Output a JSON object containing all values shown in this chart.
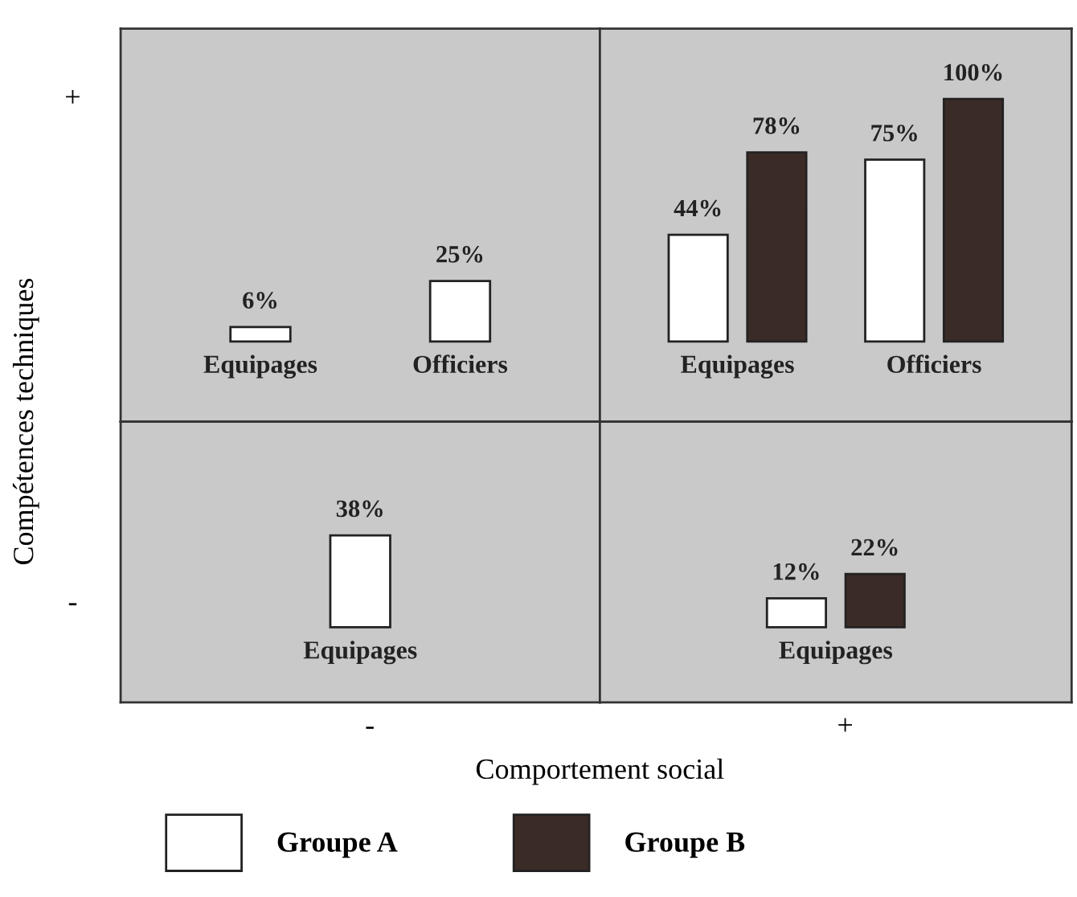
{
  "chart_data": [
    {
      "type": "bar",
      "ylabel": "Compétences techniques",
      "categories": [
        "Equipages",
        "Officiers"
      ],
      "ylim": [
        -33,
        129
      ],
      "annotations": [
        "+"
      ],
      "series": [
        {
          "color": "#ffffff",
          "values": [
            6,
            25
          ],
          "value_labels": [
            "6%",
            "25%"
          ]
        }
      ]
    },
    {
      "type": "bar",
      "categories": [
        "Equipages",
        "Officiers"
      ],
      "ylim": [
        -33,
        129
      ],
      "legend": "bottom",
      "series": [
        {
          "name": "Groupe A",
          "color": "#ffffff",
          "values": [
            44,
            75
          ],
          "value_labels": [
            "44%",
            "75%"
          ]
        },
        {
          "name": "Groupe B",
          "color": "#3b2b26",
          "values": [
            78,
            100
          ],
          "value_labels": [
            "78%",
            "100%"
          ]
        }
      ]
    },
    {
      "type": "bar",
      "xlabel": "Comportement social",
      "categories": [
        "Equipages"
      ],
      "ylim": [
        -31,
        85
      ],
      "annotations": [
        "-",
        "-"
      ],
      "series": [
        {
          "color": "#ffffff",
          "values": [
            38
          ],
          "value_labels": [
            "38%"
          ]
        }
      ]
    },
    {
      "type": "bar",
      "categories": [
        "Equipages"
      ],
      "ylim": [
        -31,
        85
      ],
      "annotations": [
        "+"
      ],
      "series": [
        {
          "color": "#ffffff",
          "values": [
            12
          ],
          "value_labels": [
            "12%"
          ]
        },
        {
          "color": "#3b2b26",
          "values": [
            22
          ],
          "value_labels": [
            "22%"
          ]
        }
      ]
    }
  ]
}
